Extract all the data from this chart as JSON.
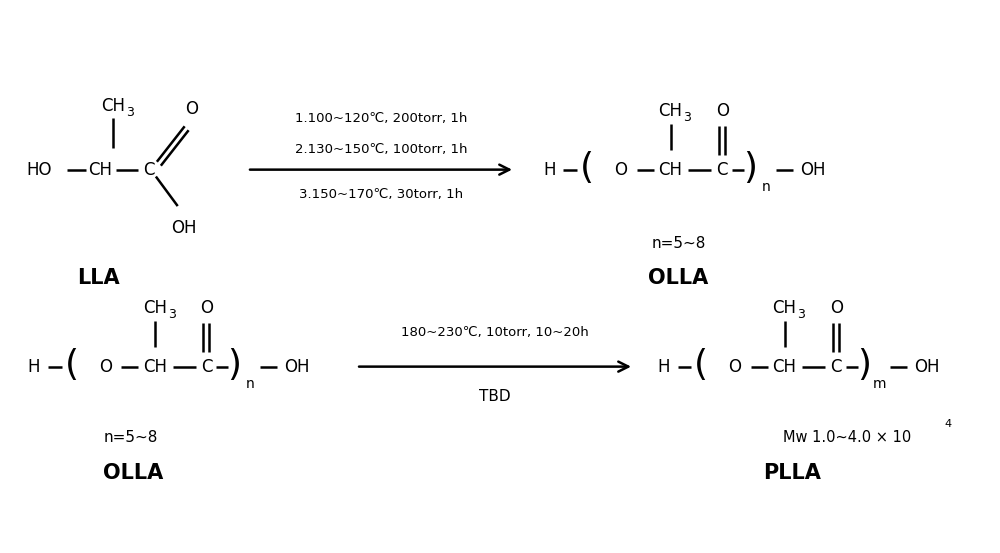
{
  "bg_color": "#ffffff",
  "fig_width": 10.0,
  "fig_height": 5.53,
  "dpi": 100,
  "reaction1_conditions": [
    "1.100~120℃, 200torr, 1h",
    "2.130~150℃, 100torr, 1h",
    "3.150~170℃, 30torr, 1h"
  ],
  "reaction2_condition_top": "180~230℃, 10torr, 10~20h",
  "reaction2_condition_bot": "TBD",
  "label_LLA": "LLA",
  "label_OLLA": "OLLA",
  "label_PLLA": "PLLA",
  "n58": "n=5~8",
  "mw": "Mw 1.0~4.0 × 10",
  "mw_exp": "4"
}
